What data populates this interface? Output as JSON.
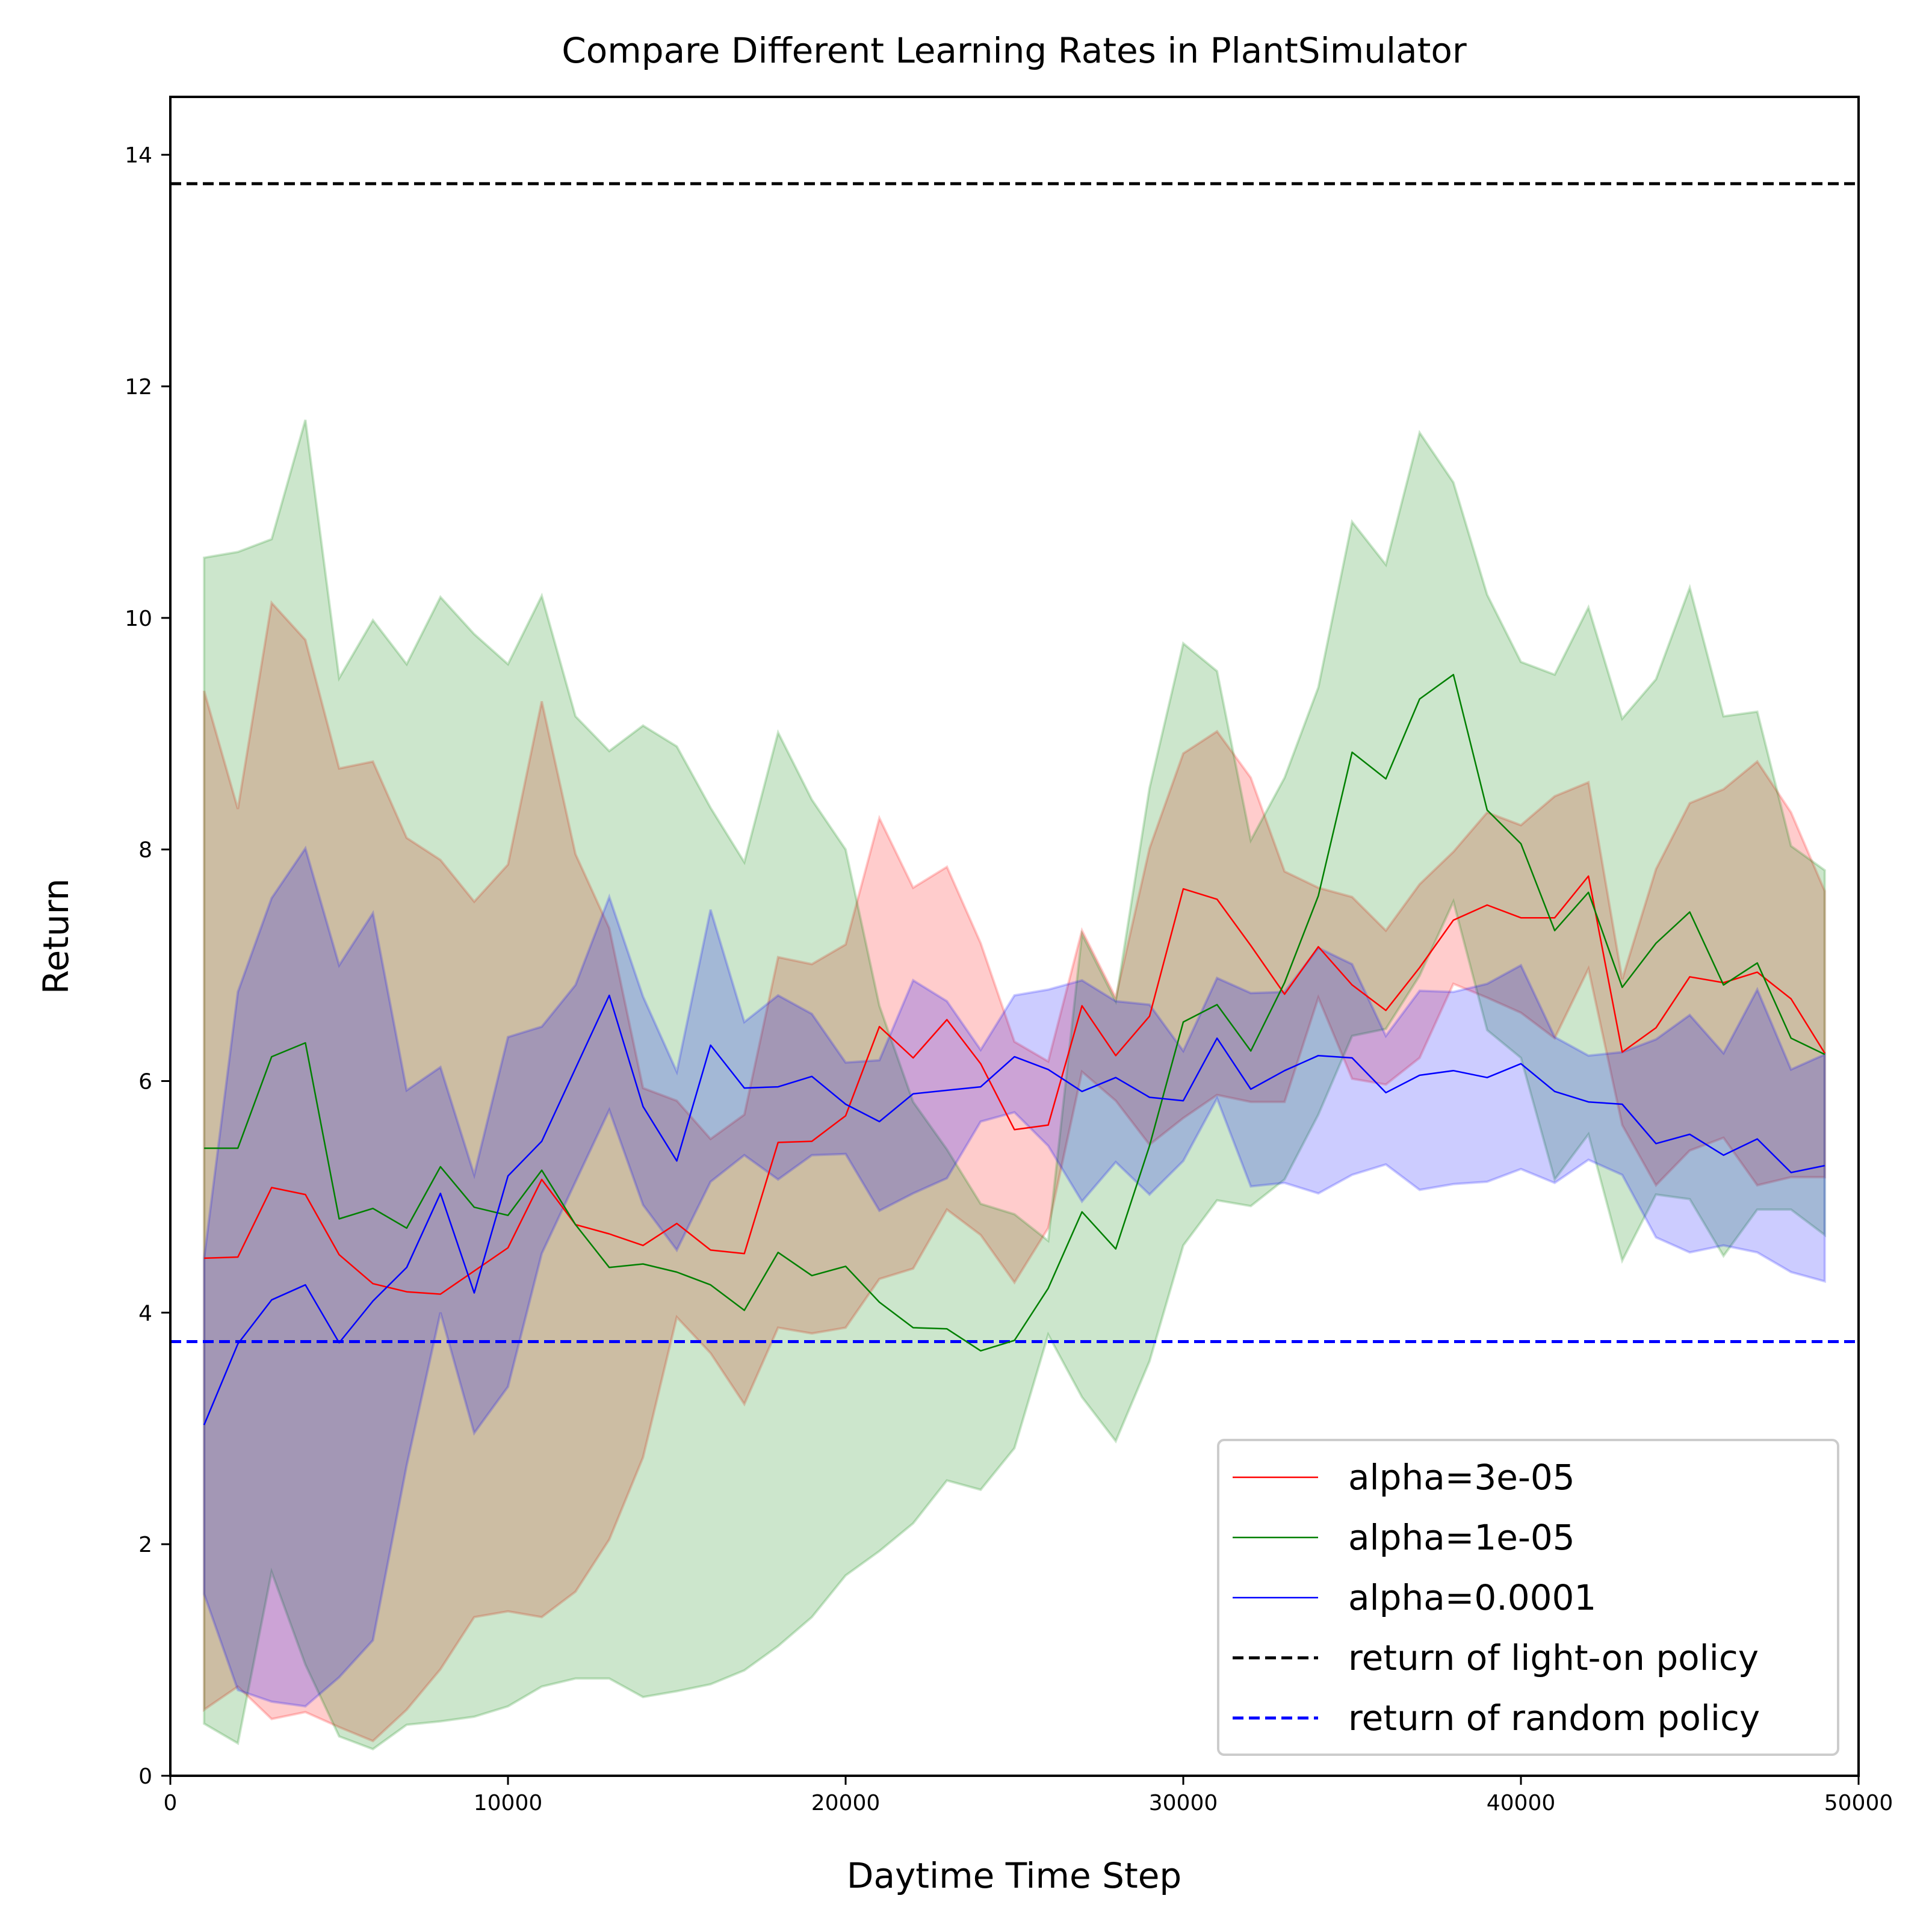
{
  "chart_data": {
    "type": "line",
    "title": "Compare Different Learning Rates in PlantSimulator",
    "xlabel": "Daytime Time Step",
    "ylabel": "Return",
    "xlim": [
      0,
      50000
    ],
    "ylim": [
      0,
      14.5
    ],
    "xticks": [
      0,
      10000,
      20000,
      30000,
      40000,
      50000
    ],
    "yticks": [
      0,
      2,
      4,
      6,
      8,
      10,
      12,
      14
    ],
    "grid": false,
    "legend_position": "lower-right",
    "x": [
      1000,
      2000,
      3000,
      4000,
      5000,
      6000,
      7000,
      8000,
      9000,
      10000,
      11000,
      12000,
      13000,
      14000,
      15000,
      16000,
      17000,
      18000,
      19000,
      20000,
      21000,
      22000,
      23000,
      24000,
      25000,
      26000,
      27000,
      28000,
      29000,
      30000,
      31000,
      32000,
      33000,
      34000,
      35000,
      36000,
      37000,
      38000,
      39000,
      40000,
      41000,
      42000,
      43000,
      44000,
      45000,
      46000,
      47000,
      48000,
      49000
    ],
    "series": [
      {
        "name": "alpha=3e-05",
        "color": "#ff0000",
        "values": [
          4.47,
          4.48,
          5.08,
          5.02,
          4.5,
          4.25,
          4.18,
          4.16,
          4.36,
          4.56,
          5.15,
          4.76,
          4.68,
          4.58,
          4.77,
          4.54,
          4.51,
          5.47,
          5.48,
          5.7,
          6.47,
          6.2,
          6.53,
          6.15,
          5.58,
          5.62,
          6.65,
          6.22,
          6.56,
          7.66,
          7.57,
          7.17,
          6.75,
          7.16,
          6.83,
          6.61,
          6.98,
          7.39,
          7.52,
          7.41,
          7.41,
          7.77,
          6.25,
          6.46,
          6.9,
          6.85,
          6.94,
          6.71,
          6.24
        ],
        "band_upper": [
          9.37,
          8.35,
          10.13,
          9.81,
          8.7,
          8.76,
          8.1,
          7.91,
          7.55,
          7.87,
          9.28,
          7.96,
          7.32,
          5.94,
          5.83,
          5.5,
          5.71,
          7.07,
          7.01,
          7.18,
          8.27,
          7.67,
          7.85,
          7.19,
          6.34,
          6.17,
          7.3,
          6.72,
          8.01,
          8.83,
          9.02,
          8.62,
          7.81,
          7.67,
          7.59,
          7.3,
          7.7,
          7.98,
          8.32,
          8.21,
          8.46,
          8.58,
          6.88,
          7.83,
          8.4,
          8.52,
          8.76,
          8.32,
          7.64
        ],
        "band_lower": [
          0.57,
          0.77,
          0.49,
          0.55,
          0.42,
          0.3,
          0.57,
          0.92,
          1.37,
          1.42,
          1.37,
          1.59,
          2.04,
          2.75,
          3.96,
          3.65,
          3.21,
          3.87,
          3.82,
          3.87,
          4.29,
          4.38,
          4.89,
          4.67,
          4.26,
          4.73,
          6.08,
          5.83,
          5.45,
          5.68,
          5.88,
          5.82,
          5.82,
          6.72,
          6.02,
          5.97,
          6.2,
          6.84,
          6.72,
          6.59,
          6.37,
          6.97,
          5.62,
          5.1,
          5.4,
          5.51,
          5.1,
          5.17,
          5.17
        ]
      },
      {
        "name": "alpha=1e-05",
        "color": "#008000",
        "values": [
          5.42,
          5.42,
          6.21,
          6.33,
          4.81,
          4.9,
          4.73,
          5.26,
          4.91,
          4.84,
          5.23,
          4.76,
          4.39,
          4.42,
          4.35,
          4.24,
          4.02,
          4.52,
          4.32,
          4.4,
          4.09,
          3.87,
          3.86,
          3.67,
          3.76,
          4.21,
          4.87,
          4.55,
          5.44,
          6.51,
          6.66,
          6.26,
          6.85,
          7.6,
          8.84,
          8.61,
          9.3,
          9.51,
          8.34,
          8.05,
          7.3,
          7.63,
          6.81,
          7.19,
          7.46,
          6.83,
          7.02,
          6.37,
          6.23
        ],
        "band_upper": [
          10.52,
          10.57,
          10.68,
          11.71,
          9.48,
          9.98,
          9.6,
          10.18,
          9.86,
          9.6,
          10.19,
          9.15,
          8.85,
          9.07,
          8.89,
          8.36,
          7.89,
          9.01,
          8.43,
          8.0,
          6.65,
          5.82,
          5.41,
          4.94,
          4.85,
          4.62,
          7.27,
          6.69,
          8.53,
          9.78,
          9.54,
          8.08,
          8.62,
          9.4,
          10.83,
          10.46,
          11.6,
          11.17,
          10.2,
          9.62,
          9.51,
          10.09,
          9.13,
          9.47,
          10.26,
          9.15,
          9.19,
          8.03,
          7.82
        ],
        "band_lower": [
          0.45,
          0.28,
          1.76,
          0.96,
          0.34,
          0.23,
          0.44,
          0.47,
          0.51,
          0.6,
          0.77,
          0.84,
          0.84,
          0.68,
          0.73,
          0.79,
          0.91,
          1.12,
          1.37,
          1.73,
          1.94,
          2.18,
          2.55,
          2.47,
          2.83,
          3.81,
          3.27,
          2.89,
          3.58,
          4.58,
          4.97,
          4.92,
          5.15,
          5.71,
          6.39,
          6.45,
          6.91,
          7.55,
          6.44,
          6.2,
          5.15,
          5.54,
          4.45,
          5.02,
          4.98,
          4.49,
          4.89,
          4.89,
          4.67
        ]
      },
      {
        "name": "alpha=0.0001",
        "color": "#0000ff",
        "values": [
          3.03,
          3.73,
          4.11,
          4.24,
          3.74,
          4.1,
          4.39,
          5.03,
          4.17,
          5.18,
          5.48,
          6.11,
          6.74,
          5.78,
          5.31,
          6.31,
          5.94,
          5.95,
          6.04,
          5.8,
          5.65,
          5.89,
          5.92,
          5.95,
          6.21,
          6.1,
          5.91,
          6.03,
          5.86,
          5.83,
          6.37,
          5.93,
          6.09,
          6.22,
          6.2,
          5.9,
          6.05,
          6.09,
          6.03,
          6.15,
          5.91,
          5.82,
          5.8,
          5.46,
          5.54,
          5.36,
          5.5,
          5.21,
          5.27
        ],
        "band_upper": [
          4.47,
          6.77,
          7.58,
          8.01,
          7.0,
          7.45,
          5.92,
          6.12,
          5.19,
          6.38,
          6.47,
          6.83,
          7.59,
          6.73,
          6.08,
          7.48,
          6.51,
          6.74,
          6.58,
          6.16,
          6.18,
          6.87,
          6.69,
          6.27,
          6.74,
          6.79,
          6.87,
          6.69,
          6.66,
          6.26,
          6.89,
          6.76,
          6.77,
          7.15,
          7.01,
          6.39,
          6.78,
          6.77,
          6.84,
          7.0,
          6.38,
          6.22,
          6.25,
          6.36,
          6.57,
          6.24,
          6.79,
          6.1,
          6.23
        ],
        "band_lower": [
          1.57,
          0.74,
          0.64,
          0.6,
          0.85,
          1.17,
          2.68,
          4.0,
          2.96,
          3.36,
          4.51,
          5.13,
          5.75,
          4.93,
          4.54,
          5.13,
          5.36,
          5.15,
          5.36,
          5.37,
          4.88,
          5.03,
          5.16,
          5.65,
          5.73,
          5.44,
          4.96,
          5.3,
          5.02,
          5.31,
          5.85,
          5.09,
          5.12,
          5.03,
          5.19,
          5.28,
          5.06,
          5.11,
          5.13,
          5.24,
          5.12,
          5.32,
          5.19,
          4.65,
          4.52,
          4.58,
          4.52,
          4.35,
          4.27
        ]
      }
    ],
    "reference_lines": [
      {
        "name": "return of light-on policy",
        "y": 13.75,
        "color": "#000000"
      },
      {
        "name": "return of random policy",
        "y": 3.75,
        "color": "#0000ff"
      }
    ]
  }
}
